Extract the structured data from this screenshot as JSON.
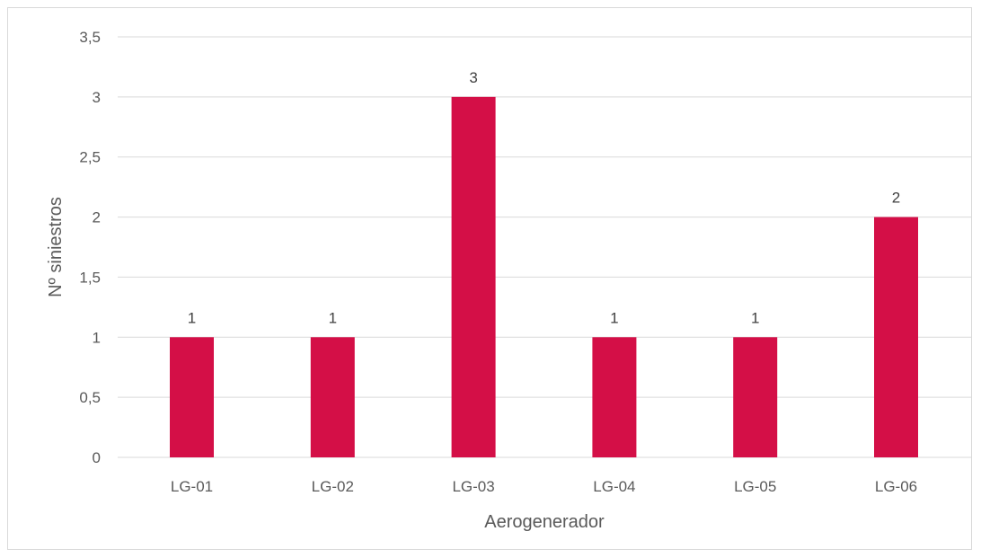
{
  "chart_data": {
    "type": "bar",
    "categories": [
      "LG-01",
      "LG-02",
      "LG-03",
      "LG-04",
      "LG-05",
      "LG-06"
    ],
    "values": [
      1,
      1,
      3,
      1,
      1,
      2
    ],
    "data_labels": [
      "1",
      "1",
      "3",
      "1",
      "1",
      "2"
    ],
    "y_ticks": [
      0,
      0.5,
      1,
      1.5,
      2,
      2.5,
      3,
      3.5
    ],
    "y_tick_labels": [
      "0",
      "0,5",
      "1",
      "1,5",
      "2",
      "2,5",
      "3",
      "3,5"
    ],
    "ylim": [
      0,
      3.5
    ],
    "xlabel": "Aerogenerador",
    "ylabel": "Nº siniestros",
    "grid": true,
    "bar_color": "#d40f47",
    "grid_color": "#d9d9d9"
  }
}
